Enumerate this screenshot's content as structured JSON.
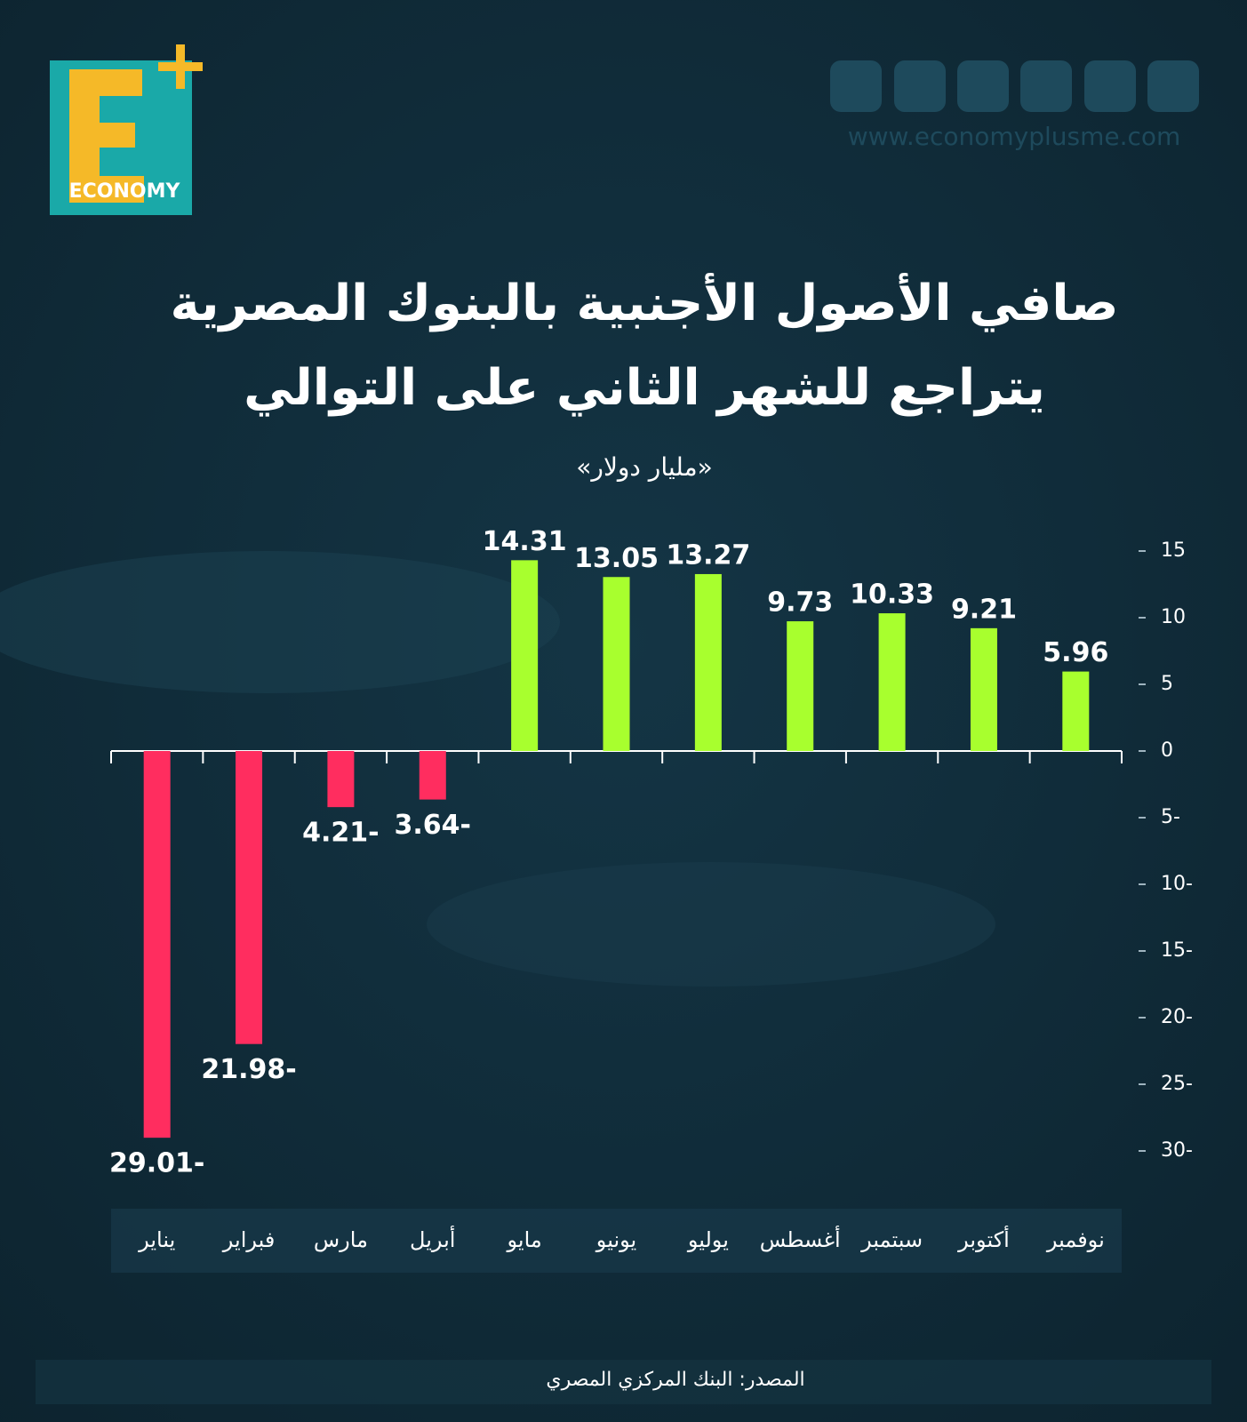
{
  "logo": {
    "text": "ECONOMY"
  },
  "website": "www.economyplusme.com",
  "source": "المصدر: البنك المركزي المصري",
  "chart_data": {
    "type": "bar",
    "title": [
      "صافي الأصول الأجنبية بالبنوك المصرية",
      "يتراجع للشهر الثاني على التوالي"
    ],
    "subtitle": "«مليار دولار»",
    "categories": [
      "يناير",
      "فبراير",
      "مارس",
      "أبريل",
      "مايو",
      "يونيو",
      "يوليو",
      "أغسطس",
      "سبتمبر",
      "أكتوبر",
      "نوفمبر"
    ],
    "values": [
      -29.01,
      -21.98,
      -4.21,
      -3.64,
      14.31,
      13.05,
      13.27,
      9.73,
      10.33,
      9.21,
      5.96
    ],
    "value_labels": [
      "29.01-",
      "21.98-",
      "4.21-",
      "3.64-",
      "14.31",
      "13.05",
      "13.27",
      "9.73",
      "10.33",
      "9.21",
      "5.96"
    ],
    "color_positive": "#a8ff2e",
    "color_negative": "#ff2d5f",
    "ylim": [
      -30,
      15
    ],
    "yticks": [
      15,
      10,
      5,
      0,
      {
        "value": -5,
        "label": "5-"
      },
      {
        "value": -10,
        "label": "10-"
      },
      {
        "value": -15,
        "label": "15-"
      },
      {
        "value": -20,
        "label": "20-"
      },
      {
        "value": -25,
        "label": "25-"
      },
      {
        "value": -30,
        "label": "30-"
      }
    ]
  }
}
